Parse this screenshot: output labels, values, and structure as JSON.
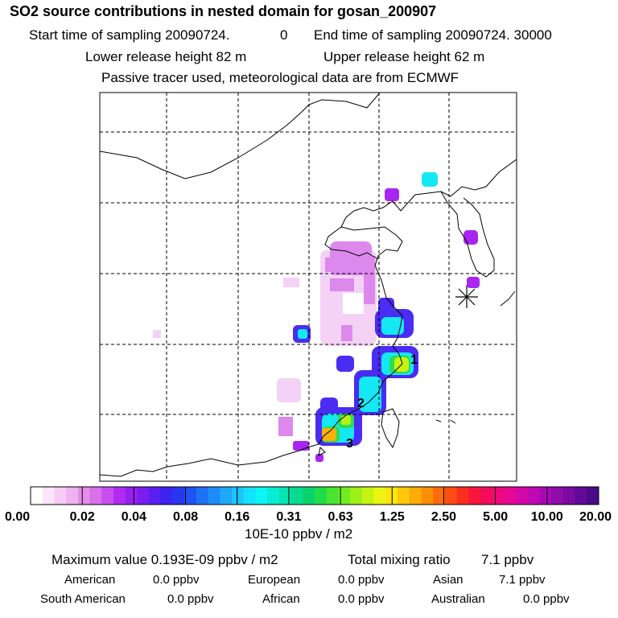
{
  "header": {
    "title": "SO2 source contributions in nested domain for gosan_200907",
    "start_sampling": "Start time of sampling 20090724.",
    "start_hour": "0",
    "end_sampling": "End time of sampling 20090724. 30000",
    "lower_release": "Lower release height   82 m",
    "upper_release": "Upper release height   62 m",
    "tracer_note": "Passive tracer used, meteorological data are from ECMWF"
  },
  "map_labels": [
    "1",
    "2",
    "3"
  ],
  "colorbar": {
    "tick_labels": [
      "0.00",
      "0.02",
      "0.04",
      "0.08",
      "0.16",
      "0.31",
      "0.63",
      "1.25",
      "2.50",
      "5.00",
      "10.00",
      "20.00"
    ],
    "units": "10E-10 ppbv / m2",
    "colors": [
      "#ffffff",
      "#fbe6fb",
      "#f6ccf6",
      "#efb2ef",
      "#e38ee8",
      "#d870ea",
      "#c94ef0",
      "#b12cf2",
      "#9620f0",
      "#7a1ef0",
      "#5a1ef0",
      "#3c24f0",
      "#2638f0",
      "#1e54f2",
      "#1e70f4",
      "#1e8cf6",
      "#1ea8f8",
      "#1ec4fa",
      "#12e2fc",
      "#0cf4f4",
      "#08ecd4",
      "#06e4b2",
      "#06dc90",
      "#08d46c",
      "#20dc48",
      "#48e430",
      "#72ec20",
      "#9cf018",
      "#c6f412",
      "#ecf410",
      "#fce40c",
      "#fcc808",
      "#fcac06",
      "#fc8e06",
      "#fc6e0a",
      "#fc4e10",
      "#fc2e1e",
      "#f8163a",
      "#f40c5c",
      "#f0087a",
      "#e60896",
      "#d408a8",
      "#c008b4",
      "#a808b4",
      "#900aac",
      "#7a0aa2",
      "#620a96",
      "#4a0a88"
    ]
  },
  "summary": {
    "max_value": "Maximum value  0.193E-09 ppbv / m2",
    "total_label": "Total mixing ratio",
    "total_value": "7.1 ppbv",
    "regions": [
      {
        "name": "American",
        "value": "0.0 ppbv"
      },
      {
        "name": "European",
        "value": "0.0 ppbv"
      },
      {
        "name": "Asian",
        "value": "7.1 ppbv"
      },
      {
        "name": "South American",
        "value": "0.0 ppbv"
      },
      {
        "name": "African",
        "value": "0.0 ppbv"
      },
      {
        "name": "Australian",
        "value": "0.0 ppbv"
      }
    ]
  },
  "chart_data": {
    "type": "heatmap",
    "title": "SO2 source contributions in nested domain for gosan_200907",
    "color_scale_breaks": [
      0.0,
      0.02,
      0.04,
      0.08,
      0.16,
      0.31,
      0.63,
      1.25,
      2.5,
      5.0,
      10.0,
      20.0
    ],
    "units": "10E-10 ppbv / m2",
    "receptor_marker": "gosan",
    "labeled_sources": [
      "1",
      "2",
      "3"
    ],
    "maximum_value": "0.193E-09 ppbv / m2",
    "total_mixing_ratio_ppbv": 7.1
  }
}
